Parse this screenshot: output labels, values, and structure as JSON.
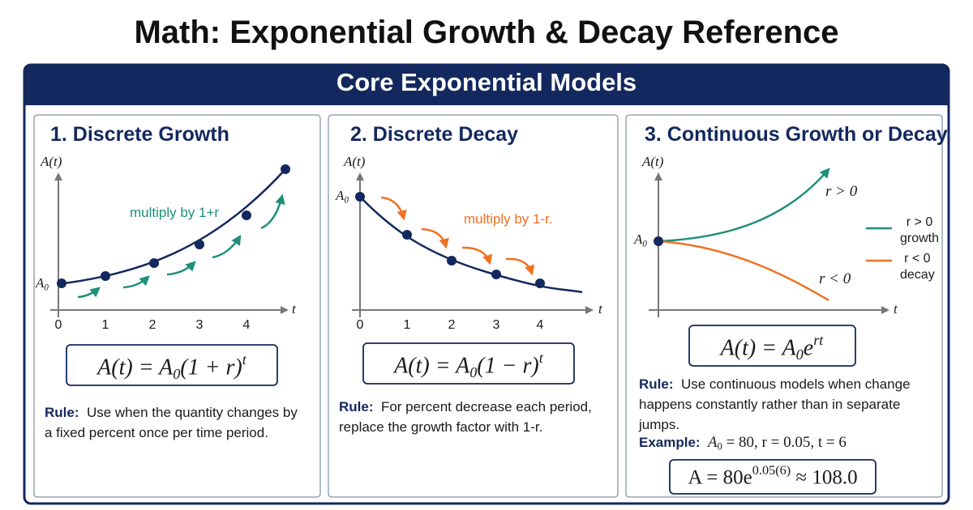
{
  "header": {
    "title": "Math: Exponential Growth & Decay Reference"
  },
  "banner": {
    "title": "Core Exponential Models"
  },
  "panels": [
    {
      "heading": "1. Discrete Growth",
      "y_axis_label": "A(t)",
      "x_axis_label": "t",
      "start_label": {
        "base": "A",
        "sub": "0"
      },
      "x_ticks": [
        "0",
        "1",
        "2",
        "3",
        "4"
      ],
      "annotation": "multiply by 1+r",
      "formula": {
        "lhs": "A(t) = A",
        "sub": "0",
        "body": "(1 + r)",
        "sup": "t"
      },
      "rule": {
        "label": "Rule:",
        "text": "Use when the quantity changes by a fixed percent once per time period."
      }
    },
    {
      "heading": "2. Discrete Decay",
      "y_axis_label": "A(t)",
      "x_axis_label": "t",
      "start_label": {
        "base": "A",
        "sub": "0"
      },
      "x_ticks": [
        "0",
        "1",
        "2",
        "3",
        "4"
      ],
      "annotation": "multiply by 1-r.",
      "formula": {
        "lhs": "A(t) = A",
        "sub": "0",
        "body": "(1 − r)",
        "sup": "t"
      },
      "rule": {
        "label": "Rule:",
        "text": "For percent decrease each period, replace the growth factor with 1-r."
      }
    },
    {
      "heading": "3. Continuous Growth or Decay",
      "y_axis_label": "A(t)",
      "x_axis_label": "t",
      "start_label": {
        "base": "A",
        "sub": "0"
      },
      "curve_labels": {
        "growth": "r > 0",
        "decay": "r < 0"
      },
      "legend": [
        {
          "symbol": "r > 0",
          "name": "growth"
        },
        {
          "symbol": "r < 0",
          "name": "decay"
        }
      ],
      "formula": {
        "lhs": "A(t) = A",
        "sub": "0",
        "body": "e",
        "sup": "rt"
      },
      "rule": {
        "label": "Rule:",
        "text": "Use continuous models when change happens constantly rather than in separate jumps."
      },
      "example": {
        "label": "Example:",
        "base": "A",
        "sub": "0",
        "text": " = 80, r = 0.05, t = 6"
      },
      "result": {
        "lhs": "A = 80e",
        "sup": "0.05(6)",
        "rhs": " ≈ 108.0"
      }
    }
  ]
}
